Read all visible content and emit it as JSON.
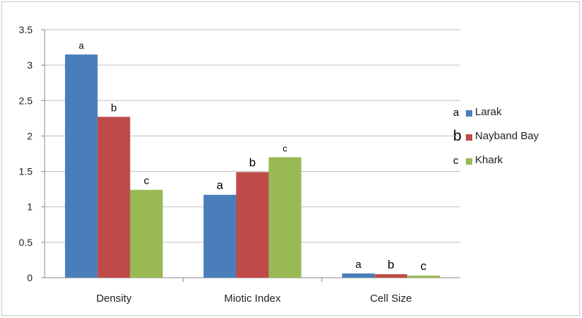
{
  "chart_data": {
    "type": "bar",
    "categories": [
      "Density",
      "Miotic Index",
      "Cell Size"
    ],
    "series": [
      {
        "name": "Larak",
        "color": "#4a7ebb",
        "values": [
          3.15,
          1.17,
          0.06
        ],
        "labels": [
          "a",
          "a",
          "a"
        ]
      },
      {
        "name": "Nayband Bay",
        "color": "#be4b48",
        "values": [
          2.27,
          1.49,
          0.05
        ],
        "labels": [
          "b",
          "b",
          "b"
        ]
      },
      {
        "name": "Khark",
        "color": "#98b954",
        "values": [
          1.24,
          1.7,
          0.03
        ],
        "labels": [
          "c",
          "c",
          "c"
        ]
      }
    ],
    "ylim": [
      0,
      3.5
    ],
    "yticks": [
      "0",
      "0.5",
      "1",
      "1.5",
      "2",
      "2.5",
      "3",
      "3.5"
    ],
    "grid": true,
    "legend_position": "right",
    "legend_markers": [
      "a",
      "b",
      "c"
    ]
  }
}
